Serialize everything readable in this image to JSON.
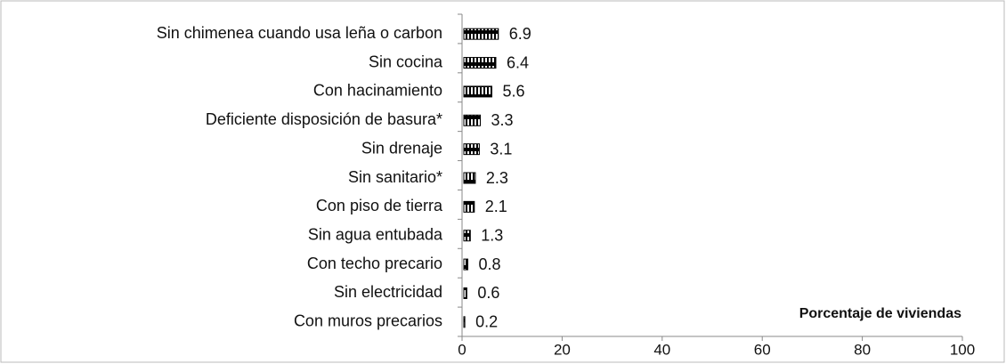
{
  "chart_data": {
    "type": "bar",
    "orientation": "horizontal",
    "categories": [
      "Sin chimenea cuando usa leña o carbon",
      "Sin cocina",
      "Con hacinamiento",
      "Deficiente disposición de basura*",
      "Sin drenaje",
      "Sin sanitario*",
      "Con piso de tierra",
      "Sin agua entubada",
      "Con techo precario",
      "Sin electricidad",
      "Con muros precarios"
    ],
    "values": [
      6.9,
      6.4,
      5.6,
      3.3,
      3.1,
      2.3,
      2.1,
      1.3,
      0.8,
      0.6,
      0.2
    ],
    "color": "#000000",
    "xlim": [
      0,
      100
    ],
    "xticks": [
      0,
      20,
      40,
      60,
      80,
      100
    ],
    "annotation": "Porcentaje de viviendas"
  }
}
